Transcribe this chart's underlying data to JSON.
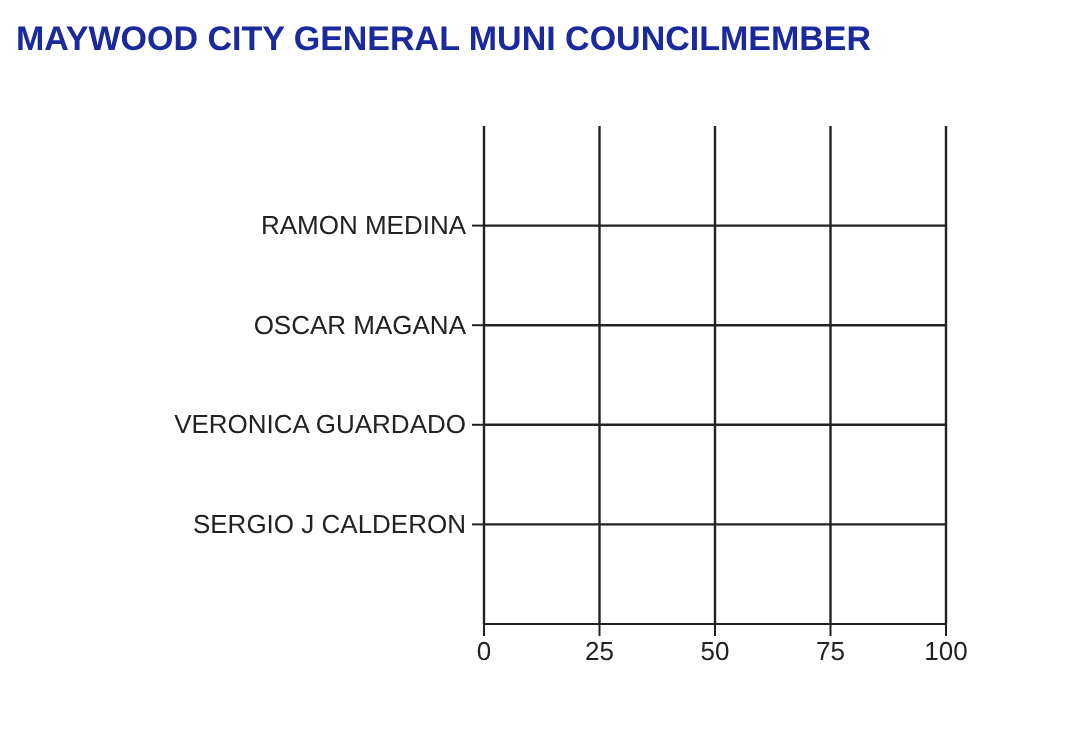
{
  "chart_data": {
    "type": "bar",
    "orientation": "horizontal",
    "title": "MAYWOOD CITY GENERAL MUNI COUNCILMEMBER",
    "categories": [
      "RAMON MEDINA",
      "OSCAR MAGANA",
      "VERONICA GUARDADO",
      "SERGIO J CALDERON"
    ],
    "values": [
      0,
      0,
      0,
      0
    ],
    "xlim": [
      0,
      100
    ],
    "xticks": [
      0,
      25,
      50,
      75,
      100
    ],
    "grid": true
  }
}
